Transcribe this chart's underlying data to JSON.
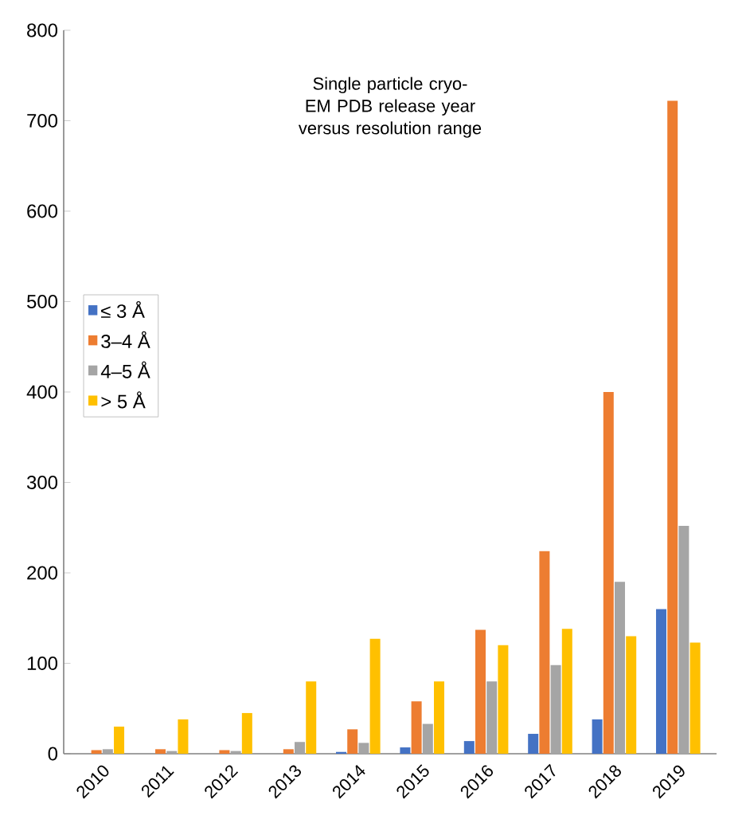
{
  "chart_data": {
    "type": "bar",
    "title": "Single particle cryo-EM PDB release year versus resolution range",
    "categories": [
      "2010",
      "2011",
      "2012",
      "2013",
      "2014",
      "2015",
      "2016",
      "2017",
      "2018",
      "2019"
    ],
    "series": [
      {
        "name": "≤ 3 Å",
        "color": "#4472c4",
        "values": [
          0,
          0,
          0,
          0,
          2,
          7,
          14,
          22,
          38,
          160
        ]
      },
      {
        "name": "3–4 Å",
        "color": "#ed7d31",
        "values": [
          4,
          5,
          4,
          5,
          27,
          58,
          137,
          224,
          400,
          722
        ]
      },
      {
        "name": "4–5 Å",
        "color": "#a5a5a5",
        "values": [
          5,
          3,
          3,
          13,
          12,
          33,
          80,
          98,
          190,
          252
        ]
      },
      {
        "name": "> 5 Å",
        "color": "#ffc000",
        "values": [
          30,
          38,
          45,
          80,
          127,
          80,
          120,
          138,
          130,
          123
        ]
      }
    ],
    "ylim": [
      0,
      800
    ],
    "yticks": [
      0,
      100,
      200,
      300,
      400,
      500,
      600,
      700,
      800
    ],
    "grid": false,
    "legend": "left"
  }
}
